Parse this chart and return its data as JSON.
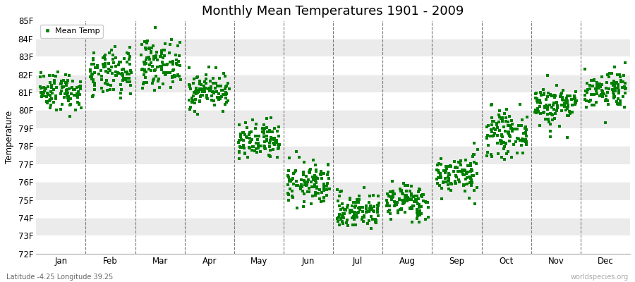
{
  "title": "Monthly Mean Temperatures 1901 - 2009",
  "ylabel": "Temperature",
  "bottom_left_label": "Latitude -4.25 Longitude 39.25",
  "bottom_right_label": "worldspecies.org",
  "legend_label": "Mean Temp",
  "ylim": [
    72,
    85
  ],
  "yticks": [
    72,
    73,
    74,
    75,
    76,
    77,
    78,
    79,
    80,
    81,
    82,
    83,
    84,
    85
  ],
  "month_labels": [
    "Jan",
    "Feb",
    "Mar",
    "Apr",
    "May",
    "Jun",
    "Jul",
    "Aug",
    "Sep",
    "Oct",
    "Nov",
    "Dec"
  ],
  "month_means": [
    81.1,
    82.0,
    82.6,
    81.1,
    78.2,
    75.9,
    74.4,
    74.9,
    76.4,
    78.7,
    80.3,
    81.2
  ],
  "month_stds": [
    0.55,
    0.65,
    0.65,
    0.5,
    0.55,
    0.6,
    0.5,
    0.5,
    0.55,
    0.6,
    0.6,
    0.55
  ],
  "n_years": 109,
  "marker_color": "#008000",
  "marker_size": 5,
  "background_color": "#ffffff",
  "band_color_odd": "#f5f5f5",
  "band_color_even": "#ebebeb",
  "grid_color": "#777777",
  "title_fontsize": 13,
  "axis_fontsize": 8.5,
  "label_fontsize": 8
}
